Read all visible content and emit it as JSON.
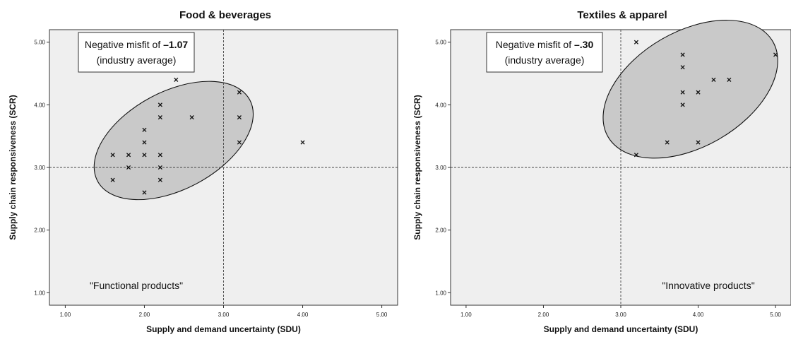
{
  "chart_data": [
    {
      "type": "scatter",
      "title": "Food & beverages",
      "xlabel": "Supply and demand uncertainty (SDU)",
      "ylabel": "Supply chain responsiveness (SCR)",
      "xlim": [
        0.8,
        5.2
      ],
      "ylim": [
        0.8,
        5.2
      ],
      "xticks": [
        "1.00",
        "2.00",
        "3.00",
        "4.00",
        "5.00"
      ],
      "yticks": [
        "1.00",
        "2.00",
        "3.00",
        "4.00",
        "5.00"
      ],
      "reference_lines": {
        "x": 3.0,
        "y": 3.0
      },
      "points": [
        {
          "x": 1.6,
          "y": 3.2
        },
        {
          "x": 1.6,
          "y": 2.8
        },
        {
          "x": 1.8,
          "y": 3.2
        },
        {
          "x": 1.8,
          "y": 3.0
        },
        {
          "x": 2.0,
          "y": 3.6
        },
        {
          "x": 2.0,
          "y": 3.4
        },
        {
          "x": 2.0,
          "y": 3.2
        },
        {
          "x": 2.0,
          "y": 2.6
        },
        {
          "x": 2.2,
          "y": 4.0
        },
        {
          "x": 2.2,
          "y": 3.8
        },
        {
          "x": 2.2,
          "y": 3.2
        },
        {
          "x": 2.2,
          "y": 3.0
        },
        {
          "x": 2.2,
          "y": 2.8
        },
        {
          "x": 2.4,
          "y": 4.4
        },
        {
          "x": 2.6,
          "y": 3.8
        },
        {
          "x": 3.2,
          "y": 4.2
        },
        {
          "x": 3.2,
          "y": 3.8
        },
        {
          "x": 3.2,
          "y": 3.4
        },
        {
          "x": 4.0,
          "y": 3.4
        }
      ],
      "ellipse": {
        "cx": 2.37,
        "cy": 3.43,
        "rx": 1.09,
        "ry": 0.78,
        "rotation_deg": 28
      },
      "annotation": {
        "line1_prefix": "Negative misfit of ",
        "line1_value": "–1.07",
        "line2": "(industry average)"
      },
      "quadrant_label": "\"Functional products\""
    },
    {
      "type": "scatter",
      "title": "Textiles & apparel",
      "xlabel": "Supply and demand uncertainty (SDU)",
      "ylabel": "Supply chain responsiveness (SCR)",
      "xlim": [
        0.8,
        5.2
      ],
      "ylim": [
        0.8,
        5.2
      ],
      "xticks": [
        "1.00",
        "2.00",
        "3.00",
        "4.00",
        "5.00"
      ],
      "yticks": [
        "1.00",
        "2.00",
        "3.00",
        "4.00",
        "5.00"
      ],
      "reference_lines": {
        "x": 3.0,
        "y": 3.0
      },
      "points": [
        {
          "x": 3.2,
          "y": 5.0
        },
        {
          "x": 3.2,
          "y": 3.2
        },
        {
          "x": 3.6,
          "y": 3.4
        },
        {
          "x": 3.8,
          "y": 4.8
        },
        {
          "x": 3.8,
          "y": 4.6
        },
        {
          "x": 3.8,
          "y": 4.2
        },
        {
          "x": 3.8,
          "y": 4.0
        },
        {
          "x": 4.0,
          "y": 4.2
        },
        {
          "x": 4.0,
          "y": 3.4
        },
        {
          "x": 4.2,
          "y": 4.4
        },
        {
          "x": 4.4,
          "y": 4.4
        },
        {
          "x": 5.0,
          "y": 4.8
        }
      ],
      "ellipse": {
        "cx": 3.9,
        "cy": 4.25,
        "rx": 1.23,
        "ry": 0.92,
        "rotation_deg": 30
      },
      "annotation": {
        "line1_prefix": "Negative misfit of ",
        "line1_value": "–.30",
        "line2": "(industry average)"
      },
      "quadrant_label": "\"Innovative products\""
    }
  ]
}
